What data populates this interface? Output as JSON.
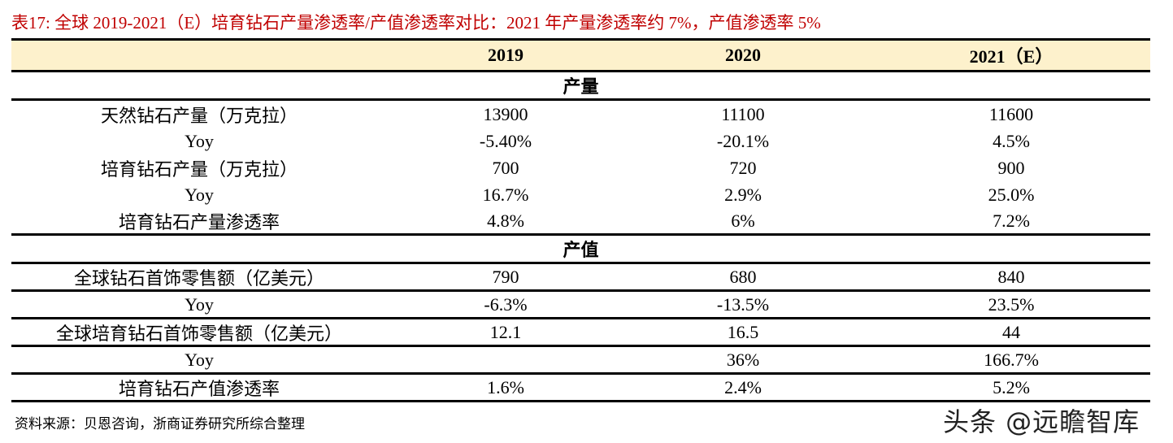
{
  "title": "表17:  全球 2019-2021（E）培育钻石产量渗透率/产值渗透率对比：2021 年产量渗透率约 7%，产值渗透率 5%",
  "columns": [
    "",
    "2019",
    "2020",
    "2021（E）"
  ],
  "sections": [
    {
      "label": "产量",
      "rows": [
        {
          "label": "天然钻石产量（万克拉）",
          "values": [
            "13900",
            "11100",
            "11600"
          ]
        },
        {
          "label": "Yoy",
          "values": [
            "-5.40%",
            "-20.1%",
            "4.5%"
          ]
        },
        {
          "label": "培育钻石产量（万克拉）",
          "values": [
            "700",
            "720",
            "900"
          ]
        },
        {
          "label": "Yoy",
          "values": [
            "16.7%",
            "2.9%",
            "25.0%"
          ]
        },
        {
          "label": "培育钻石产量渗透率",
          "values": [
            "4.8%",
            "6%",
            "7.2%"
          ]
        }
      ]
    },
    {
      "label": "产值",
      "rows": [
        {
          "label": "全球钻石首饰零售额（亿美元）",
          "values": [
            "790",
            "680",
            "840"
          ]
        },
        {
          "label": "Yoy",
          "values": [
            "-6.3%",
            "-13.5%",
            "23.5%"
          ]
        },
        {
          "label": "全球培育钻石首饰零售额（亿美元）",
          "values": [
            "12.1",
            "16.5",
            "44"
          ]
        },
        {
          "label": "Yoy",
          "values": [
            "",
            "36%",
            "166.7%"
          ]
        },
        {
          "label": "培育钻石产值渗透率",
          "values": [
            "1.6%",
            "2.4%",
            "5.2%"
          ]
        }
      ]
    }
  ],
  "source": "资料来源：贝恩咨询，浙商证券研究所综合整理",
  "watermark": "头条 @远瞻智库",
  "colors": {
    "title": "#c00000",
    "header_bg": "#fdf1cc"
  }
}
